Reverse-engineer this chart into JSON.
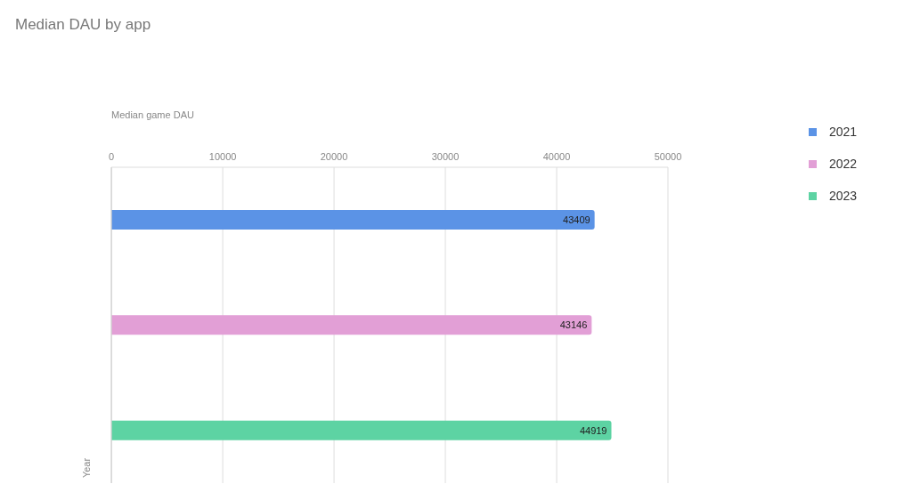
{
  "chart_data": {
    "type": "bar",
    "orientation": "horizontal",
    "title": "Median DAU by app",
    "xlabel": "Median game DAU",
    "ylabel": "Year",
    "categories": [
      null,
      null,
      null
    ],
    "series": [
      {
        "name": "2021",
        "color": "#5b93e6",
        "values": [
          43409,
          null,
          null
        ]
      },
      {
        "name": "2022",
        "color": "#e29fd6",
        "values": [
          null,
          43146,
          null
        ]
      },
      {
        "name": "2023",
        "color": "#5dd3a3",
        "values": [
          null,
          null,
          44919
        ]
      }
    ],
    "xlim": [
      0,
      50000
    ],
    "xticks": [
      0,
      10000,
      20000,
      30000,
      40000,
      50000
    ],
    "grid": "x",
    "legend": "top right",
    "data_labels": true
  }
}
